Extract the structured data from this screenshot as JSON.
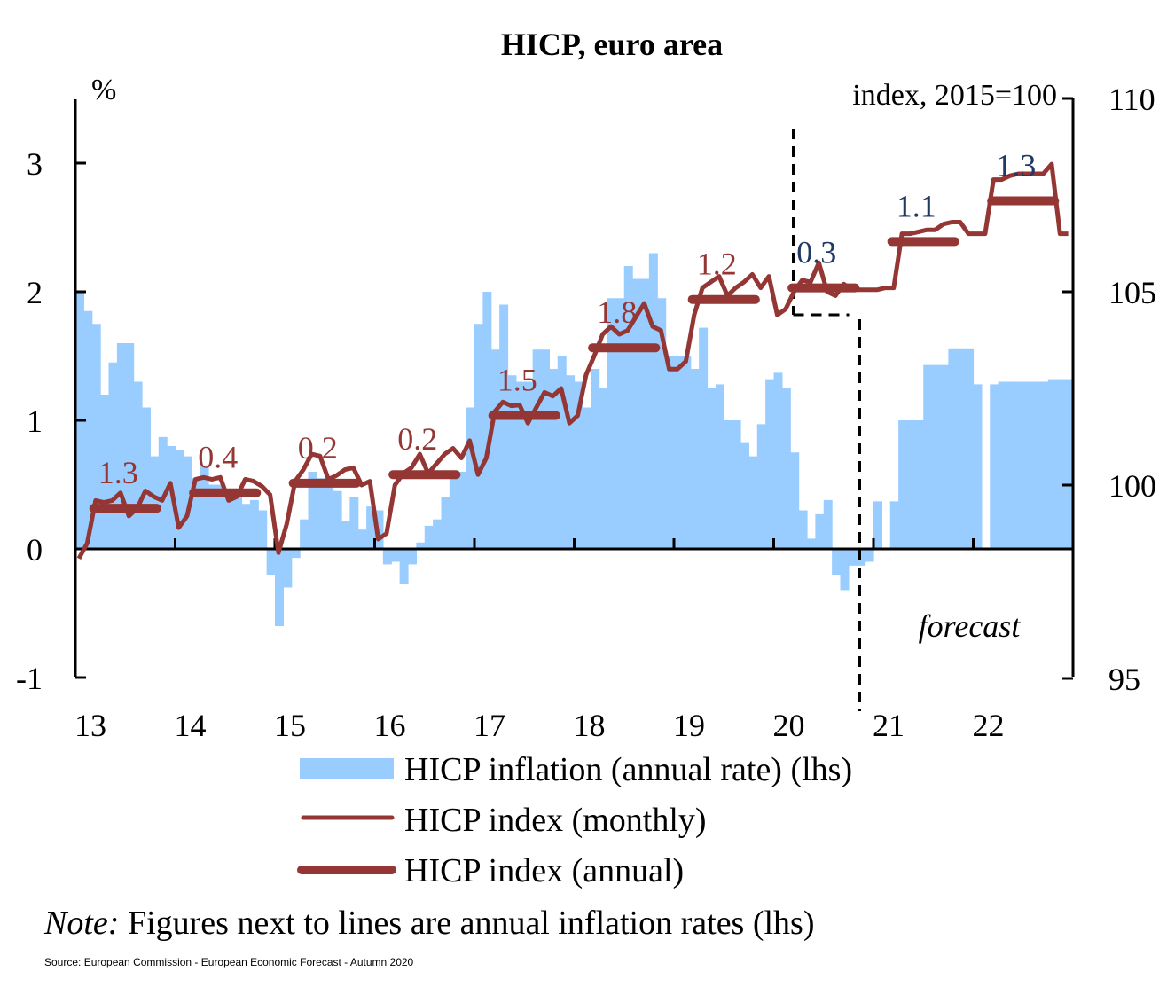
{
  "chart_data": {
    "type": "bar+line",
    "title": "HICP,  euro area",
    "left_axis": {
      "label": "%",
      "ticks": [
        "3",
        "2",
        "1",
        "0",
        "-1"
      ],
      "range": [
        -1,
        3.2
      ]
    },
    "right_axis": {
      "label": "index, 2015=100",
      "ticks": [
        "110",
        "105",
        "100",
        "95"
      ],
      "range": [
        95,
        110
      ]
    },
    "x_ticks": [
      "13",
      "14",
      "15",
      "16",
      "17",
      "18",
      "19",
      "20",
      "21",
      "22"
    ],
    "forecast_label": "forecast",
    "grid": false,
    "colors": {
      "bars": "#99CCFF",
      "index": "#943634",
      "forecast_labels": "#1F3864",
      "actual_labels": "#943634"
    },
    "legend": {
      "placement": "bottom",
      "items": [
        {
          "label": "HICP inflation (annual rate) (lhs)",
          "kind": "bar"
        },
        {
          "label": "HICP index (monthly)",
          "kind": "thin-line"
        },
        {
          "label": "HICP index (annual)",
          "kind": "thick-line"
        }
      ]
    },
    "note_prefix": "Note:",
    "note_text": " Figures next  to lines  are annual inflation  rates (lhs)",
    "source": "Source: European Commission - European Economic Forecast - Autumn 2020",
    "years": [
      2013,
      2014,
      2015,
      2016,
      2017,
      2018,
      2019,
      2020,
      2021,
      2022
    ],
    "inflation_monthly": [
      2.0,
      1.85,
      1.75,
      1.2,
      1.45,
      1.6,
      1.6,
      1.3,
      1.1,
      0.72,
      0.87,
      0.8,
      0.77,
      0.72,
      0.55,
      0.65,
      0.5,
      0.5,
      0.45,
      0.4,
      0.35,
      0.38,
      0.3,
      -0.2,
      -0.6,
      -0.3,
      -0.07,
      0.23,
      0.6,
      0.55,
      0.55,
      0.45,
      0.22,
      0.4,
      0.15,
      0.33,
      0.3,
      -0.12,
      -0.1,
      -0.27,
      -0.12,
      0.05,
      0.18,
      0.23,
      0.4,
      0.55,
      0.6,
      1.1,
      1.75,
      2.0,
      1.55,
      1.9,
      1.35,
      1.3,
      1.3,
      1.55,
      1.55,
      1.4,
      1.5,
      1.35,
      1.3,
      1.1,
      1.4,
      1.25,
      1.95,
      1.95,
      2.2,
      2.1,
      2.1,
      2.3,
      1.95,
      1.5,
      1.5,
      1.5,
      1.4,
      1.72,
      1.25,
      1.28,
      1.0,
      1.0,
      0.83,
      0.72,
      0.97,
      1.32,
      1.37,
      1.25,
      0.75,
      0.3,
      0.08,
      0.27,
      0.38,
      -0.2,
      -0.32,
      -0.13,
      -0.13,
      -0.1,
      0.37,
      0,
      0.37,
      1.0,
      1.0,
      1.0,
      1.43,
      1.43,
      1.43,
      1.56,
      1.56,
      1.56,
      1.28,
      0,
      1.28,
      1.3,
      1.3,
      1.3,
      1.3,
      1.3,
      1.3,
      1.32,
      1.32,
      1.32
    ],
    "index_monthly": [
      98.1,
      98.5,
      99.6,
      99.55,
      99.6,
      99.8,
      99.2,
      99.4,
      99.85,
      99.7,
      99.6,
      100.05,
      98.9,
      99.2,
      100.15,
      100.2,
      100.15,
      100.2,
      99.6,
      99.7,
      100.15,
      100.1,
      99.97,
      99.75,
      98.25,
      99.0,
      100.1,
      100.4,
      100.8,
      100.75,
      100.15,
      100.25,
      100.4,
      100.45,
      100.0,
      100.1,
      98.6,
      98.75,
      100.0,
      100.3,
      100.45,
      100.8,
      100.3,
      100.55,
      100.8,
      100.95,
      100.7,
      101.15,
      100.27,
      100.7,
      101.9,
      102.15,
      102.05,
      102.07,
      101.6,
      102.0,
      102.4,
      102.3,
      102.5,
      101.6,
      101.8,
      102.85,
      103.35,
      103.9,
      104.1,
      103.9,
      104.0,
      104.35,
      104.7,
      104.1,
      104.0,
      103.0,
      103.0,
      103.2,
      104.4,
      105.1,
      105.25,
      105.4,
      104.9,
      105.1,
      105.25,
      105.45,
      105.1,
      105.4,
      104.4,
      104.55,
      105.0,
      105.3,
      105.25,
      105.75,
      105.0,
      104.9,
      105.2,
      105.05,
      105.05,
      105.05,
      105.05,
      105.1,
      105.1,
      106.5,
      106.5,
      106.55,
      106.6,
      106.6,
      106.75,
      106.8,
      106.8,
      106.5,
      106.5,
      106.5,
      107.9,
      107.9,
      108.0,
      108.05,
      108.05,
      108.05,
      108.05,
      108.3,
      106.5,
      106.5
    ],
    "index_annual": [
      99.4,
      99.8,
      100.05,
      100.27,
      101.8,
      103.55,
      104.8,
      105.1,
      106.3,
      107.35
    ],
    "annual_inflation_labels": [
      "1.3",
      "0.4",
      "0.2",
      "0.2",
      "1.5",
      "1.8",
      "1.2",
      "0.3",
      "1.1",
      "1.3"
    ],
    "forecast_start_year": 2020
  }
}
